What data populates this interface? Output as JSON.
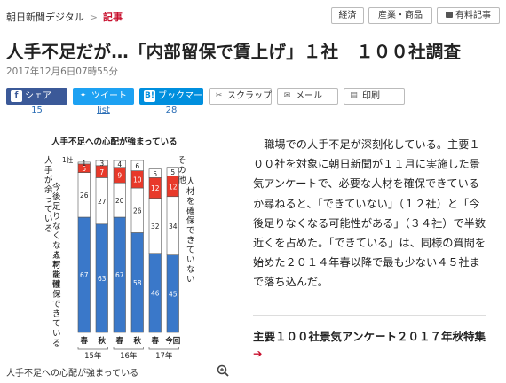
{
  "header": {
    "site": "朝日新聞デジタル",
    "separator": ">",
    "current": "記事",
    "buttons": [
      "経済",
      "産業・商品",
      "有料記事"
    ]
  },
  "article": {
    "title": "人手不足だが…「内部留保で賃上げ」１社　１００社調査",
    "date": "2017年12月6日07時55分",
    "body": "職場での人手不足が深刻化している。主要１００社を対象に朝日新聞が１１月に実施した景気アンケートで、必要な人材を確保できているか尋ねると、「できていない」（１２社）と「今後足りなくなる可能性がある」（３４社）で半数近くを占めた。「できている」は、同様の質問を始めた２０１４年春以降で最も少ない４５社まで落ち込んだ。",
    "feature_link": "主要１００社景気アンケート２０１７年秋特集",
    "feature_arrow": "➔"
  },
  "share": {
    "facebook": {
      "label": "シェア",
      "count": "15"
    },
    "twitter": {
      "label": "ツイート",
      "count": "list"
    },
    "hatena": {
      "label": "ブックマーク",
      "count": "28"
    },
    "scrap": "スクラップ",
    "mail": "メール",
    "print": "印刷"
  },
  "figure": {
    "caption": "人手不足への心配が強まっている"
  },
  "chart_data": {
    "type": "bar",
    "stacked": true,
    "title": "人手不足への心配が強まっている",
    "categories": [
      "15年 春",
      "15年 秋",
      "16年 春",
      "16年 秋",
      "17年 春",
      "17年 今回"
    ],
    "category_labels": [
      "春",
      "秋",
      "春",
      "秋",
      "春",
      "今回"
    ],
    "year_labels": [
      {
        "label": "15年",
        "span": [
          0,
          1
        ]
      },
      {
        "label": "16年",
        "span": [
          2,
          3
        ]
      },
      {
        "label": "17年",
        "span": [
          4,
          5
        ]
      }
    ],
    "series": [
      {
        "name": "人材を確保できている",
        "color": "#3a78c9",
        "values": [
          67,
          63,
          67,
          58,
          46,
          45
        ]
      },
      {
        "name": "今後足りなくなる可能性",
        "color": "#ffffff",
        "values": [
          26,
          27,
          20,
          26,
          32,
          34
        ]
      },
      {
        "name": "人手が余っている",
        "color": "#e8392a",
        "values": [
          5,
          7,
          9,
          10,
          12,
          12
        ]
      },
      {
        "name": "その他",
        "color": "#ffffff",
        "values": [
          1,
          3,
          4,
          6,
          5,
          5
        ]
      }
    ],
    "top_note": "1社",
    "side_labels": {
      "left_top": "人手が余っている",
      "left_mid": "今後足りなくなる可能性",
      "left_bottom": "人材を確保できている",
      "right_top": "その他",
      "right_mid": "人材を確保できていない"
    },
    "ylim": [
      0,
      100
    ]
  },
  "colors": {
    "accent": "#c8102e",
    "bar_blue": "#3a78c9",
    "bar_red": "#e8392a",
    "link": "#2a6db5"
  }
}
